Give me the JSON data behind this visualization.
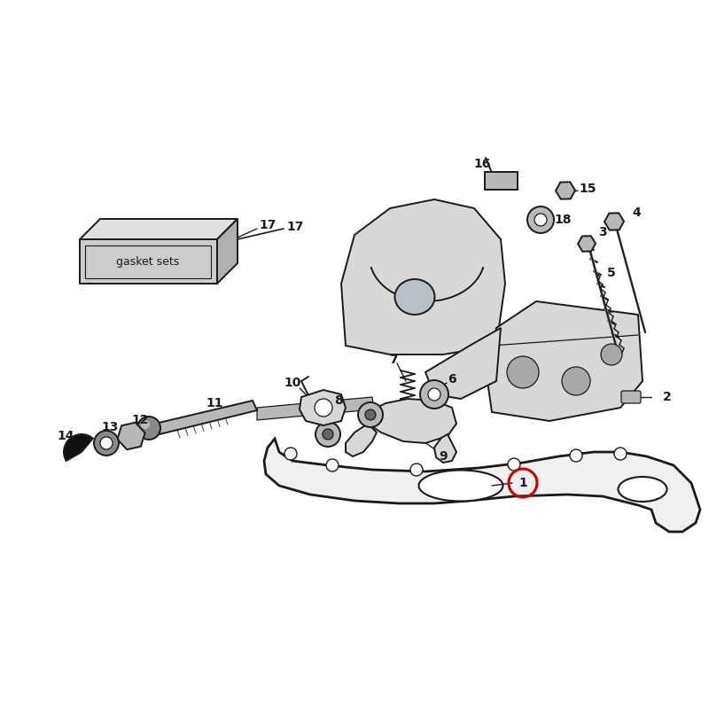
{
  "bg_color": "#ffffff",
  "lc": "#1a1a1a",
  "fill_light": "#d8d8d8",
  "fill_mid": "#b8b8b8",
  "fill_dark": "#888888",
  "fill_white": "#ffffff",
  "red": "#cc0000",
  "figsize": [
    8,
    8
  ],
  "dpi": 100,
  "lw_main": 1.4,
  "lw_thin": 0.9,
  "label_fs": 10
}
